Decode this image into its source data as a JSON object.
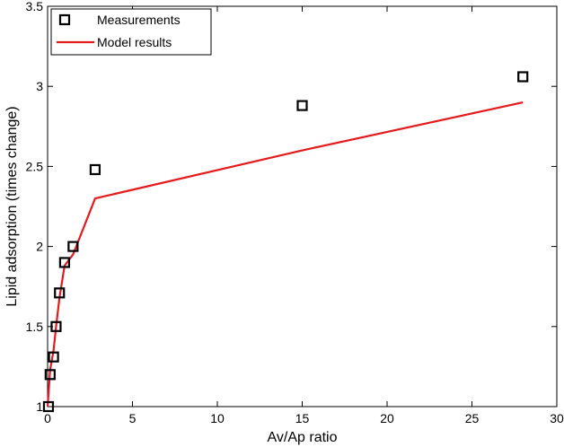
{
  "chart_data": {
    "type": "scatter",
    "xlabel": "Av/Ap ratio",
    "ylabel": "Lipid adsorption (times change)",
    "xlim": [
      0,
      30
    ],
    "ylim": [
      1,
      3.5
    ],
    "xticks": [
      "0",
      "5",
      "10",
      "15",
      "20",
      "25",
      "30"
    ],
    "yticks": [
      "1",
      "1.5",
      "2",
      "2.5",
      "3",
      "3.5"
    ],
    "grid": false,
    "legend_position": "top-left",
    "series": [
      {
        "name": "Measurements",
        "marker": "square",
        "color": "#000000",
        "points": [
          {
            "x": 0.05,
            "y": 1.0
          },
          {
            "x": 0.15,
            "y": 1.2
          },
          {
            "x": 0.35,
            "y": 1.31
          },
          {
            "x": 0.5,
            "y": 1.5
          },
          {
            "x": 0.7,
            "y": 1.71
          },
          {
            "x": 1.0,
            "y": 1.9
          },
          {
            "x": 1.5,
            "y": 2.0
          },
          {
            "x": 2.8,
            "y": 2.48
          },
          {
            "x": 15.0,
            "y": 2.88
          },
          {
            "x": 28.0,
            "y": 3.06
          }
        ]
      },
      {
        "name": "Model results",
        "line": "solid",
        "color": "#e41a1c",
        "points": [
          {
            "x": 0.0,
            "y": 1.0
          },
          {
            "x": 0.15,
            "y": 1.23
          },
          {
            "x": 0.35,
            "y": 1.35
          },
          {
            "x": 0.5,
            "y": 1.5
          },
          {
            "x": 0.7,
            "y": 1.68
          },
          {
            "x": 1.0,
            "y": 1.88
          },
          {
            "x": 1.5,
            "y": 1.95
          },
          {
            "x": 2.8,
            "y": 2.3
          },
          {
            "x": 15.0,
            "y": 2.6
          },
          {
            "x": 28.0,
            "y": 2.9
          }
        ]
      }
    ]
  }
}
